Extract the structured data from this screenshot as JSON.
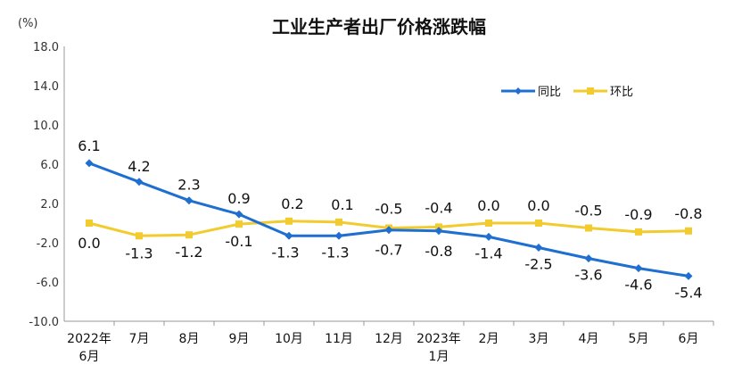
{
  "chart_data": {
    "type": "line",
    "title": "工业生产者出厂价格涨跌幅",
    "unit_label": "(%)",
    "categories": [
      [
        "2022年",
        "6月"
      ],
      [
        "7月"
      ],
      [
        "8月"
      ],
      [
        "9月"
      ],
      [
        "10月"
      ],
      [
        "11月"
      ],
      [
        "12月"
      ],
      [
        "2023年",
        "1月"
      ],
      [
        "2月"
      ],
      [
        "3月"
      ],
      [
        "4月"
      ],
      [
        "5月"
      ],
      [
        "6月"
      ]
    ],
    "ylim": [
      -10.0,
      18.0
    ],
    "yticks": [
      "18.0",
      "14.0",
      "10.0",
      "6.0",
      "2.0",
      "-2.0",
      "-6.0",
      "-10.0"
    ],
    "ytick_values": [
      18,
      14,
      10,
      6,
      2,
      -2,
      -6,
      -10
    ],
    "grid": false,
    "legend_placement": "top-right",
    "series": [
      {
        "name": "同比",
        "color": "#1f6fd1",
        "marker": "diamond",
        "values": [
          6.1,
          4.2,
          2.3,
          0.9,
          -1.3,
          -1.3,
          -0.7,
          -0.8,
          -1.4,
          -2.5,
          -3.6,
          -4.6,
          -5.4
        ],
        "labels": [
          "6.1",
          "4.2",
          "2.3",
          "0.9",
          "-1.3",
          "-1.3",
          "-0.7",
          "-0.8",
          "-1.4",
          "-2.5",
          "-3.6",
          "-4.6",
          "-5.4"
        ]
      },
      {
        "name": "环比",
        "color": "#f2cc2e",
        "marker": "square",
        "values": [
          0.0,
          -1.3,
          -1.2,
          -0.1,
          0.2,
          0.1,
          -0.5,
          -0.4,
          0.0,
          0.0,
          -0.5,
          -0.9,
          -0.8
        ],
        "labels": [
          "0.0",
          "-1.3",
          "-1.2",
          "-0.1",
          "0.2",
          "0.1",
          "-0.5",
          "-0.4",
          "0.0",
          "0.0",
          "-0.5",
          "-0.9",
          "-0.8"
        ]
      }
    ]
  }
}
